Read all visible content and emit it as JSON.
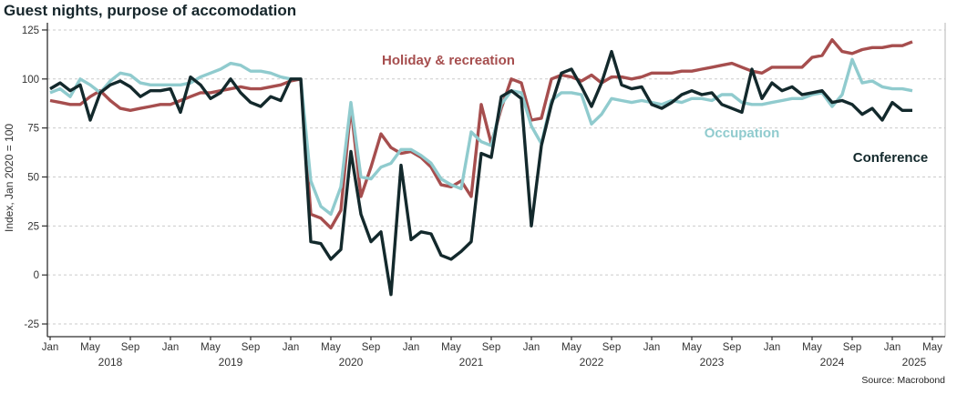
{
  "chart_data": {
    "type": "line",
    "title": "Guest nights, purpose of accomodation",
    "ylabel": "Index, Jan 2020 = 100",
    "source": "Source: Macrobond",
    "x_monthly_start": "2018-01",
    "x_monthly_end": "2025-03",
    "xtick_label_months": [
      "Jan",
      "May",
      "Sep"
    ],
    "years": [
      2018,
      2019,
      2020,
      2021,
      2022,
      2023,
      2024,
      2025
    ],
    "ylim": [
      -25,
      125
    ],
    "yticks": [
      125,
      100,
      75,
      50,
      25,
      0,
      -25
    ],
    "grid": "horizontal-dashed",
    "legend_position": "inline-labels-on-chart",
    "axis_color": "#2e2e2e",
    "grid_color": "#cbcbcb",
    "series": [
      {
        "name": "Holiday & recreation",
        "color": "#A64E4E",
        "values": [
          89,
          88,
          87,
          87,
          91,
          94,
          89,
          85,
          84,
          85,
          86,
          87,
          87,
          89,
          91,
          93,
          93,
          94,
          95,
          96,
          95,
          95,
          96,
          97,
          99,
          100,
          31,
          29,
          24,
          33,
          86,
          40,
          55,
          72,
          65,
          62,
          63,
          60,
          55,
          46,
          45,
          48,
          40,
          87,
          67,
          85,
          100,
          98,
          79,
          80,
          100,
          102,
          101,
          99,
          102,
          98,
          101,
          101,
          100,
          101,
          103,
          103,
          103,
          104,
          104,
          105,
          106,
          107,
          108,
          106,
          104,
          103,
          106,
          106,
          106,
          106,
          111,
          112,
          120,
          114,
          113,
          115,
          116,
          116,
          117,
          117,
          119
        ]
      },
      {
        "name": "Occupation",
        "color": "#90CBCE",
        "values": [
          93,
          95,
          91,
          100,
          97,
          93,
          99,
          103,
          102,
          98,
          97,
          97,
          97,
          97,
          98,
          101,
          103,
          105,
          108,
          107,
          104,
          104,
          103,
          101,
          100,
          100,
          48,
          35,
          31,
          45,
          88,
          50,
          49,
          55,
          57,
          64,
          64,
          61,
          57,
          49,
          46,
          44,
          73,
          68,
          66,
          87,
          94,
          93,
          76,
          67,
          89,
          93,
          93,
          92,
          77,
          82,
          90,
          89,
          88,
          89,
          88,
          87,
          89,
          88,
          90,
          90,
          89,
          92,
          92,
          88,
          87,
          87,
          88,
          89,
          90,
          90,
          92,
          93,
          86,
          92,
          110,
          98,
          99,
          96,
          95,
          95,
          94
        ]
      },
      {
        "name": "Conference",
        "color": "#13292C",
        "values": [
          95,
          98,
          94,
          97,
          79,
          93,
          97,
          99,
          96,
          91,
          94,
          94,
          95,
          83,
          101,
          97,
          90,
          93,
          100,
          93,
          88,
          86,
          91,
          89,
          100,
          100,
          17,
          16,
          8,
          13,
          63,
          31,
          17,
          22,
          -10,
          56,
          18,
          22,
          21,
          10,
          8,
          12,
          17,
          62,
          60,
          91,
          94,
          90,
          25,
          66,
          87,
          103,
          105,
          96,
          86,
          98,
          114,
          97,
          95,
          96,
          87,
          85,
          88,
          92,
          94,
          92,
          93,
          87,
          85,
          83,
          105,
          90,
          98,
          94,
          96,
          92,
          93,
          94,
          88,
          89,
          87,
          82,
          85,
          79,
          88,
          84,
          84
        ]
      }
    ]
  }
}
